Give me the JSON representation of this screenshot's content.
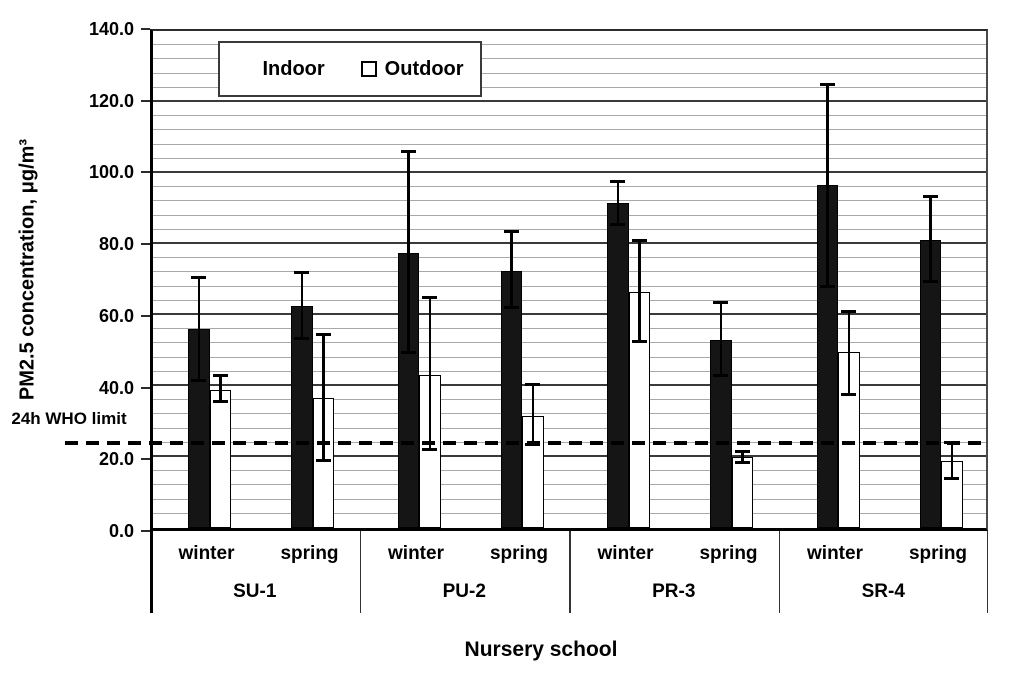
{
  "chart_data": {
    "type": "bar",
    "title": "",
    "xlabel": "Nursery school",
    "ylabel": "PM2.5 concentration, μg/m³",
    "ylim": [
      0,
      140
    ],
    "y_major_step": 20,
    "y_minor_step": 4,
    "grid": "on",
    "y_ticks": [
      {
        "value": 0,
        "label": "0.0"
      },
      {
        "value": 20,
        "label": "20.0"
      },
      {
        "value": 40,
        "label": "40.0"
      },
      {
        "value": 60,
        "label": "60.0"
      },
      {
        "value": 80,
        "label": "80.0"
      },
      {
        "value": 100,
        "label": "100.0"
      },
      {
        "value": 120,
        "label": "120.0"
      },
      {
        "value": 140,
        "label": "140.0"
      }
    ],
    "legend": {
      "position": "top-center",
      "entries": [
        {
          "label": "Indoor",
          "fill": "#151515"
        },
        {
          "label": "Outdoor",
          "fill": "#ffffff"
        }
      ]
    },
    "reference_line": {
      "label": "24h WHO limit",
      "value": 24,
      "style": "dashed",
      "color": "#000000"
    },
    "categories": [
      "SU-1",
      "PU-2",
      "PR-3",
      "SR-4"
    ],
    "seasons_per_category": [
      "winter",
      "spring"
    ],
    "groups": [
      {
        "school": "SU-1",
        "seasons": [
          {
            "season": "winter",
            "bars": [
              {
                "series": "Indoor",
                "value": 56.0,
                "err_low": 41.5,
                "err_high": 70.5
              },
              {
                "series": "Outdoor",
                "value": 39.0,
                "err_low": 35.5,
                "err_high": 43.0
              }
            ]
          },
          {
            "season": "spring",
            "bars": [
              {
                "series": "Indoor",
                "value": 62.5,
                "err_low": 53.5,
                "err_high": 72.0
              },
              {
                "series": "Outdoor",
                "value": 36.5,
                "err_low": 19.0,
                "err_high": 54.5
              }
            ]
          }
        ]
      },
      {
        "school": "PU-2",
        "seasons": [
          {
            "season": "winter",
            "bars": [
              {
                "series": "Indoor",
                "value": 77.5,
                "err_low": 49.5,
                "err_high": 106.0
              },
              {
                "series": "Outdoor",
                "value": 43.0,
                "err_low": 22.0,
                "err_high": 65.0
              }
            ]
          },
          {
            "season": "spring",
            "bars": [
              {
                "series": "Indoor",
                "value": 72.5,
                "err_low": 62.0,
                "err_high": 83.5
              },
              {
                "series": "Outdoor",
                "value": 31.5,
                "err_low": 23.5,
                "err_high": 40.5
              }
            ]
          }
        ]
      },
      {
        "school": "PR-3",
        "seasons": [
          {
            "season": "winter",
            "bars": [
              {
                "series": "Indoor",
                "value": 91.5,
                "err_low": 85.5,
                "err_high": 97.5
              },
              {
                "series": "Outdoor",
                "value": 66.5,
                "err_low": 52.5,
                "err_high": 81.0
              }
            ]
          },
          {
            "season": "spring",
            "bars": [
              {
                "series": "Indoor",
                "value": 53.0,
                "err_low": 43.0,
                "err_high": 63.5
              },
              {
                "series": "Outdoor",
                "value": 20.0,
                "err_low": 18.5,
                "err_high": 21.5
              }
            ]
          }
        ]
      },
      {
        "school": "SR-4",
        "seasons": [
          {
            "season": "winter",
            "bars": [
              {
                "series": "Indoor",
                "value": 96.5,
                "err_low": 68.0,
                "err_high": 125.0
              },
              {
                "series": "Outdoor",
                "value": 49.5,
                "err_low": 37.5,
                "err_high": 61.0
              }
            ]
          },
          {
            "season": "spring",
            "bars": [
              {
                "series": "Indoor",
                "value": 81.0,
                "err_low": 69.5,
                "err_high": 93.5
              },
              {
                "series": "Outdoor",
                "value": 19.0,
                "err_low": 14.0,
                "err_high": 24.0
              }
            ]
          }
        ]
      }
    ]
  }
}
